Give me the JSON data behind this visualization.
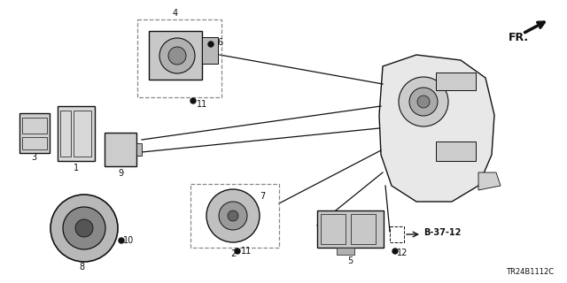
{
  "bg_color": "#ffffff",
  "line_color": "#111111",
  "diagram_code": "TR24B1112C",
  "ref_label": "B-37-12",
  "figsize": [
    6.4,
    3.2
  ],
  "dpi": 100
}
